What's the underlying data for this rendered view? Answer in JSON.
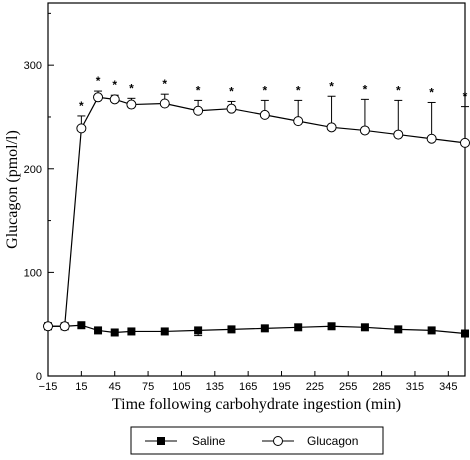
{
  "chart_data": {
    "type": "line",
    "xlabel": "Time following carbohydrate ingestion (min)",
    "ylabel": "Glucagon (pmol/l)",
    "xlim": [
      -15,
      360
    ],
    "ylim": [
      0,
      360
    ],
    "x_ticks": [
      -15,
      15,
      45,
      75,
      105,
      135,
      165,
      195,
      225,
      255,
      285,
      315,
      345
    ],
    "y_ticks": [
      0,
      100,
      200,
      300
    ],
    "legend_position": "bottom",
    "series": [
      {
        "name": "Saline",
        "marker": "filled-square",
        "x": [
          -15,
          0,
          15,
          30,
          45,
          60,
          90,
          120,
          150,
          180,
          210,
          240,
          270,
          300,
          330,
          360
        ],
        "y": [
          48,
          48,
          49,
          44,
          42,
          43,
          43,
          44,
          45,
          46,
          47,
          48,
          47,
          45,
          44,
          41
        ],
        "error": [
          0,
          0,
          0,
          0,
          0,
          0,
          0,
          0,
          0,
          0,
          0,
          0,
          0,
          0,
          0,
          0
        ],
        "error_below": [
          0,
          0,
          0,
          0,
          0,
          0,
          0,
          5,
          0,
          0,
          0,
          0,
          0,
          0,
          0,
          0
        ]
      },
      {
        "name": "Glucagon",
        "marker": "open-circle",
        "x": [
          -15,
          0,
          15,
          30,
          45,
          60,
          90,
          120,
          150,
          180,
          210,
          240,
          270,
          300,
          330,
          360
        ],
        "y": [
          48,
          48,
          239,
          269,
          267,
          262,
          263,
          256,
          258,
          252,
          246,
          240,
          237,
          233,
          229,
          225
        ],
        "error": [
          0,
          0,
          12,
          6,
          4,
          6,
          9,
          10,
          7,
          14,
          20,
          30,
          30,
          33,
          35,
          35
        ],
        "error_below": [
          0,
          0,
          0,
          0,
          0,
          0,
          0,
          0,
          0,
          0,
          0,
          0,
          0,
          0,
          0,
          0
        ]
      }
    ],
    "significance_x": [
      15,
      30,
      45,
      60,
      90,
      120,
      150,
      180,
      210,
      240,
      270,
      300,
      330,
      360
    ],
    "significance_label": "*"
  }
}
